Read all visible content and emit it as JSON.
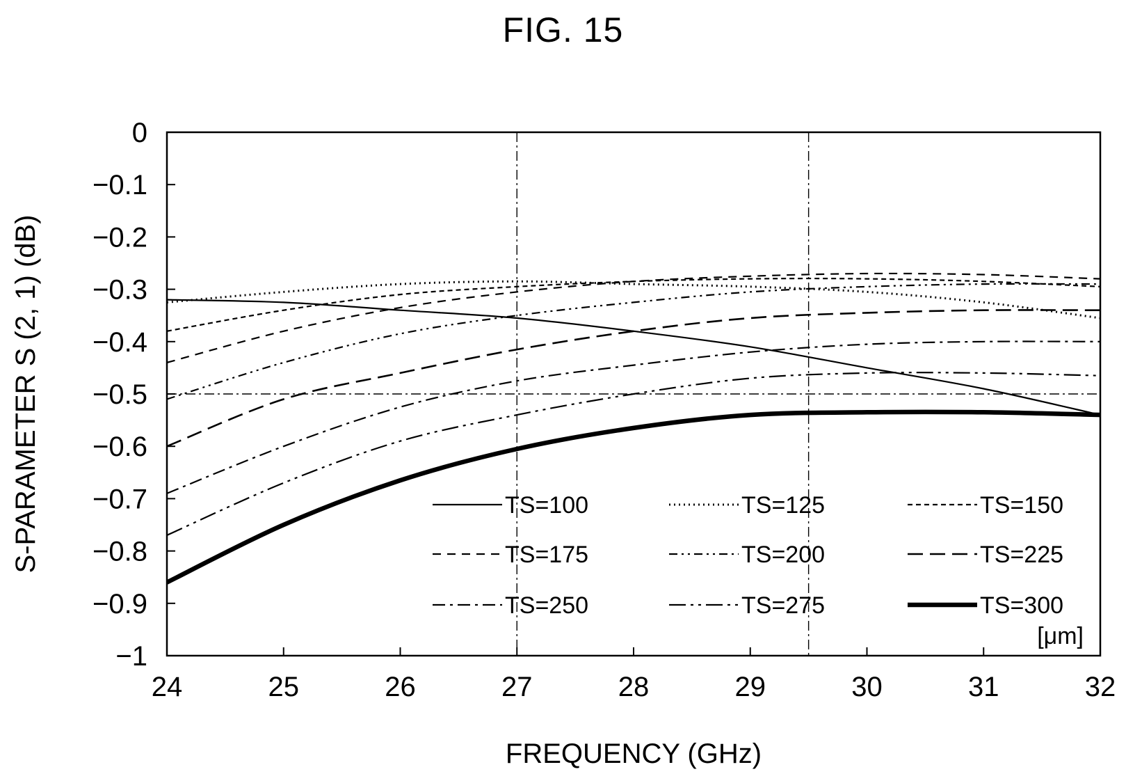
{
  "figure": {
    "title": "FIG. 15"
  },
  "chart_data": {
    "type": "line",
    "xlabel": "FREQUENCY (GHz)",
    "ylabel": "S-PARAMETER S (2, 1) (dB)",
    "xlim": [
      24,
      32
    ],
    "ylim": [
      -1,
      0
    ],
    "x_ticks": [
      "24",
      "25",
      "26",
      "27",
      "28",
      "29",
      "30",
      "31",
      "32"
    ],
    "y_ticks": [
      "0",
      "-0.1",
      "-0.2",
      "-0.3",
      "-0.4",
      "-0.5",
      "-0.6",
      "-0.7",
      "-0.8",
      "-0.9",
      "-1"
    ],
    "reference_lines": {
      "x": [
        27,
        29.5
      ],
      "y": [
        -0.5
      ]
    },
    "grid": false,
    "legend": {
      "position": "lower-right",
      "unit_label": "[μm]",
      "columns": 3
    },
    "x": [
      24,
      25,
      26,
      27,
      28,
      29,
      30,
      31,
      32
    ],
    "series": [
      {
        "name": "TS=100",
        "style": "solid",
        "values": [
          -0.32,
          -0.325,
          -0.34,
          -0.355,
          -0.38,
          -0.41,
          -0.45,
          -0.49,
          -0.54
        ]
      },
      {
        "name": "TS=125",
        "style": "dotted",
        "values": [
          -0.325,
          -0.305,
          -0.29,
          -0.285,
          -0.29,
          -0.295,
          -0.305,
          -0.325,
          -0.355
        ]
      },
      {
        "name": "TS=150",
        "style": "short-dash",
        "values": [
          -0.38,
          -0.34,
          -0.31,
          -0.295,
          -0.285,
          -0.28,
          -0.28,
          -0.285,
          -0.295
        ]
      },
      {
        "name": "TS=175",
        "style": "dash",
        "values": [
          -0.44,
          -0.38,
          -0.335,
          -0.305,
          -0.285,
          -0.275,
          -0.27,
          -0.272,
          -0.28
        ]
      },
      {
        "name": "TS=200",
        "style": "dash-dot-dot",
        "values": [
          -0.51,
          -0.44,
          -0.385,
          -0.35,
          -0.325,
          -0.305,
          -0.295,
          -0.29,
          -0.29
        ]
      },
      {
        "name": "TS=225",
        "style": "long-dash",
        "values": [
          -0.6,
          -0.51,
          -0.46,
          -0.415,
          -0.38,
          -0.355,
          -0.345,
          -0.34,
          -0.34
        ]
      },
      {
        "name": "TS=250",
        "style": "dash-dot",
        "values": [
          -0.69,
          -0.6,
          -0.525,
          -0.475,
          -0.445,
          -0.42,
          -0.405,
          -0.4,
          -0.4
        ]
      },
      {
        "name": "TS=275",
        "style": "long-dash-dot",
        "values": [
          -0.77,
          -0.67,
          -0.59,
          -0.54,
          -0.5,
          -0.47,
          -0.46,
          -0.46,
          -0.465
        ]
      },
      {
        "name": "TS=300",
        "style": "thick-solid",
        "values": [
          -0.86,
          -0.75,
          -0.665,
          -0.605,
          -0.565,
          -0.54,
          -0.535,
          -0.535,
          -0.54
        ]
      }
    ]
  }
}
